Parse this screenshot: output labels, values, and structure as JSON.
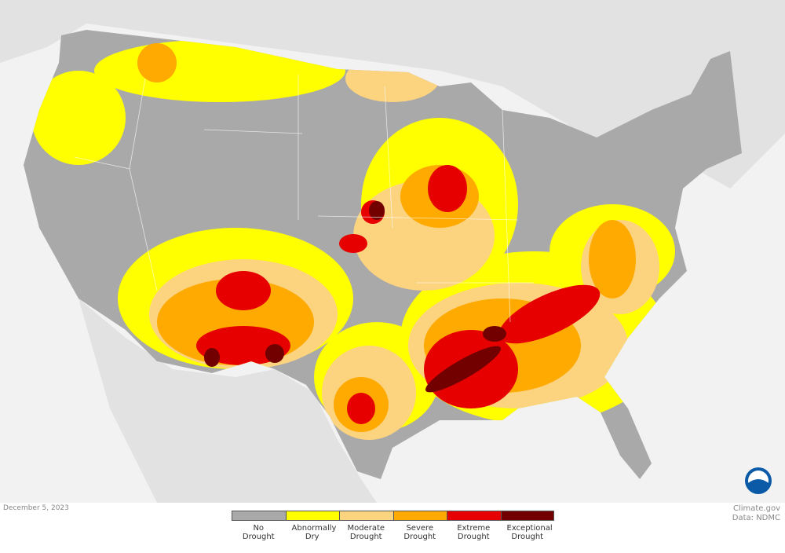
{
  "date": "December 5, 2023",
  "credit": [
    "Climate.gov",
    "Data: NDMC"
  ],
  "legend": {
    "items": [
      {
        "label": "No Drought",
        "color": "#a9a9a9"
      },
      {
        "label": "Abnormally Dry",
        "color": "#ffff00"
      },
      {
        "label": "Moderate Drought",
        "color": "#fcd37f"
      },
      {
        "label": "Severe Drought",
        "color": "#ffaa00"
      },
      {
        "label": "Extreme Drought",
        "color": "#e60000"
      },
      {
        "label": "Exceptional Drought",
        "color": "#730000"
      }
    ]
  }
}
